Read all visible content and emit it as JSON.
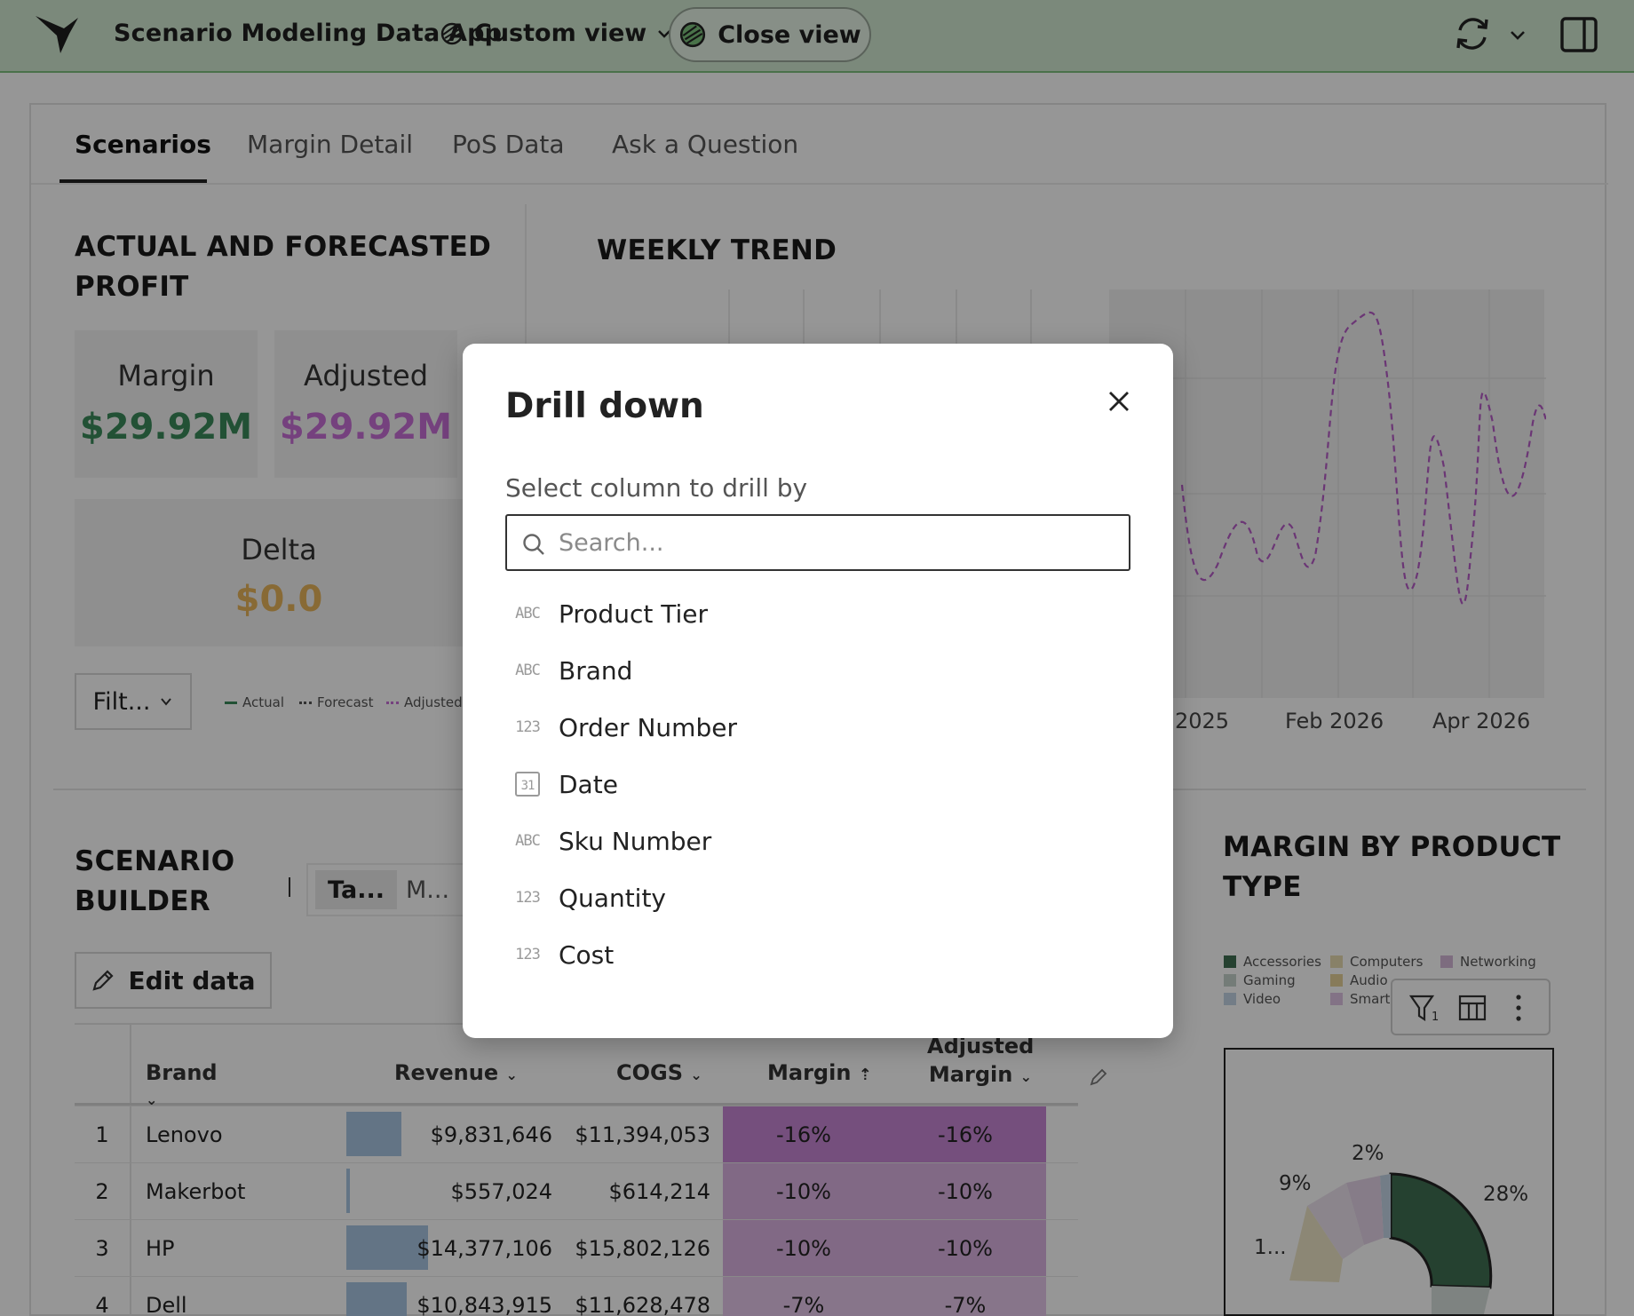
{
  "topbar": {
    "app_title": "Scenario Modeling Data App",
    "custom_view_label": "Custom view",
    "close_view_label": "Close view"
  },
  "tabs": [
    "Scenarios",
    "Margin Detail",
    "PoS Data",
    "Ask a Question"
  ],
  "profit_section": {
    "title_line1": "ACTUAL AND FORECASTED",
    "title_line2": "PROFIT",
    "margin_label": "Margin",
    "margin_value": "$29.92M",
    "adjusted_label": "Adjusted",
    "adjusted_value": "$29.92M",
    "delta_label": "Delta",
    "delta_value": "$0.0",
    "filter_label": "Filt...",
    "legend": [
      "Actual",
      "Forecast",
      "Adjusted"
    ]
  },
  "weekly_trend": {
    "title": "WEEKLY TREND",
    "x_ticks": [
      "2025",
      "Feb 2026",
      "Apr 2026"
    ]
  },
  "scenario_builder": {
    "title_line1": "SCENARIO",
    "title_line2": "BUILDER",
    "toggle_a": "Ta...",
    "toggle_b": "M...",
    "edit_label": "Edit data",
    "columns": {
      "brand": "Brand",
      "revenue": "Revenue",
      "cogs": "COGS",
      "margin": "Margin",
      "adjusted_line1": "Adjusted",
      "adjusted_line2": "Margin"
    },
    "rows": [
      {
        "num": "1",
        "brand": "Lenovo",
        "revenue": "$9,831,646",
        "cogs": "$11,394,053",
        "margin": "-16%",
        "adjusted": "-16%"
      },
      {
        "num": "2",
        "brand": "Makerbot",
        "revenue": "$557,024",
        "cogs": "$614,214",
        "margin": "-10%",
        "adjusted": "-10%"
      },
      {
        "num": "3",
        "brand": "HP",
        "revenue": "$14,377,106",
        "cogs": "$15,802,126",
        "margin": "-10%",
        "adjusted": "-10%"
      },
      {
        "num": "4",
        "brand": "Dell",
        "revenue": "$10,843,915",
        "cogs": "$11,628,478",
        "margin": "-7%",
        "adjusted": "-7%"
      }
    ]
  },
  "margin_by_type": {
    "title_line1": "MARGIN BY PRODUCT",
    "title_line2": "TYPE",
    "legend": [
      "Accessories",
      "Computers",
      "Networking",
      "Gaming",
      "Audio",
      "Video",
      "Smart"
    ],
    "colors": {
      "accessories": "#3f6f52",
      "computers": "#e8dcb2",
      "networking": "#d4b8d8",
      "gaming": "#c5d3cc",
      "audio": "#e6d29a",
      "video": "#c4d4e6",
      "smart": "#dfc3e4"
    },
    "labels": [
      "2%",
      "9%",
      "28%",
      "1..."
    ],
    "filter_count": "1"
  },
  "modal": {
    "title": "Drill down",
    "label": "Select column to drill by",
    "search_placeholder": "Search...",
    "options": [
      {
        "type": "ABC",
        "name": "Product Tier"
      },
      {
        "type": "ABC",
        "name": "Brand"
      },
      {
        "type": "123",
        "name": "Order Number"
      },
      {
        "type": "31",
        "name": "Date"
      },
      {
        "type": "ABC",
        "name": "Sku Number"
      },
      {
        "type": "123",
        "name": "Quantity"
      },
      {
        "type": "123",
        "name": "Cost"
      }
    ]
  },
  "colors": {
    "topbar_bg": "#d2e9d2",
    "margin_green": "#3b8a5a",
    "adjusted_purple": "#c86fd6",
    "delta_gold": "#e7b45b",
    "bar_blue": "#a9c6e3",
    "margin_cell": "#dcb3e3"
  }
}
